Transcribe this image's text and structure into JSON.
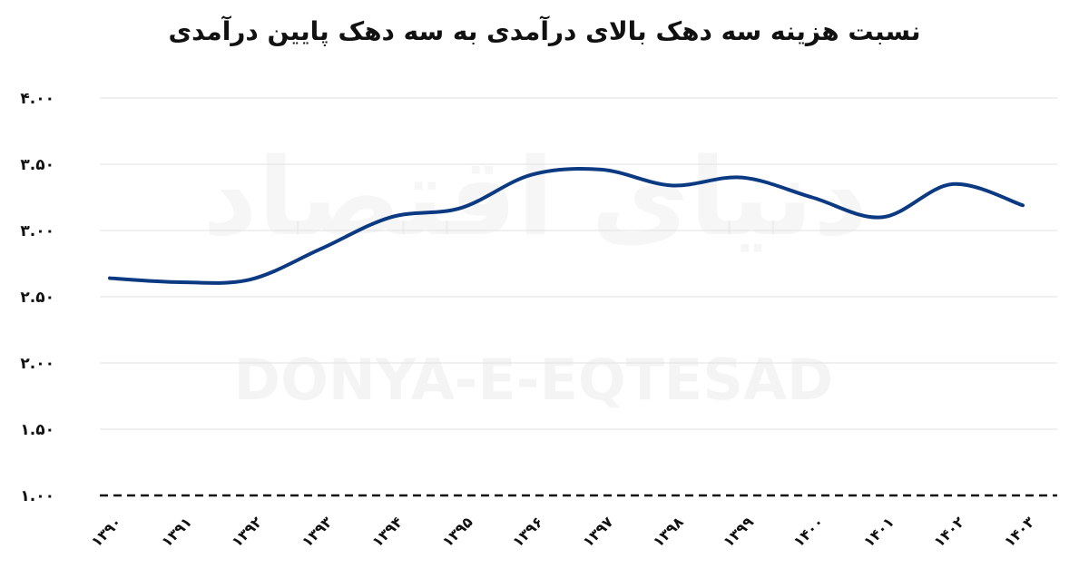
{
  "chart_data": {
    "type": "line",
    "title": "نسبت هزینه سه دهک بالای درآمدی به سه دهک پایین درآمدی",
    "xlabel": "",
    "ylabel": "",
    "ylim": [
      1.0,
      4.0
    ],
    "y_ticks": [
      "۱.۰۰",
      "۱.۵۰",
      "۲.۰۰",
      "۲.۵۰",
      "۳.۰۰",
      "۳.۵۰",
      "۴.۰۰"
    ],
    "y_tick_values": [
      1.0,
      1.5,
      2.0,
      2.5,
      3.0,
      3.5,
      4.0
    ],
    "categories": [
      "۱۳۹۰",
      "۱۳۹۱",
      "۱۳۹۲",
      "۱۳۹۳",
      "۱۳۹۴",
      "۱۳۹۵",
      "۱۳۹۶",
      "۱۳۹۷",
      "۱۳۹۸",
      "۱۳۹۹",
      "۱۴۰۰",
      "۱۴۰۱",
      "۱۴۰۲",
      "۱۴۰۳"
    ],
    "series": [
      {
        "name": "نسبت",
        "color": "#0b3a82",
        "values": [
          2.64,
          2.61,
          2.63,
          2.86,
          3.1,
          3.17,
          3.42,
          3.46,
          3.34,
          3.4,
          3.25,
          3.1,
          3.35,
          3.19
        ]
      }
    ],
    "grid": true,
    "baseline_style": "dashed"
  },
  "watermark": {
    "latin": "DONYA-E-EQTESAD",
    "persian": "دنیای اقتصاد"
  }
}
